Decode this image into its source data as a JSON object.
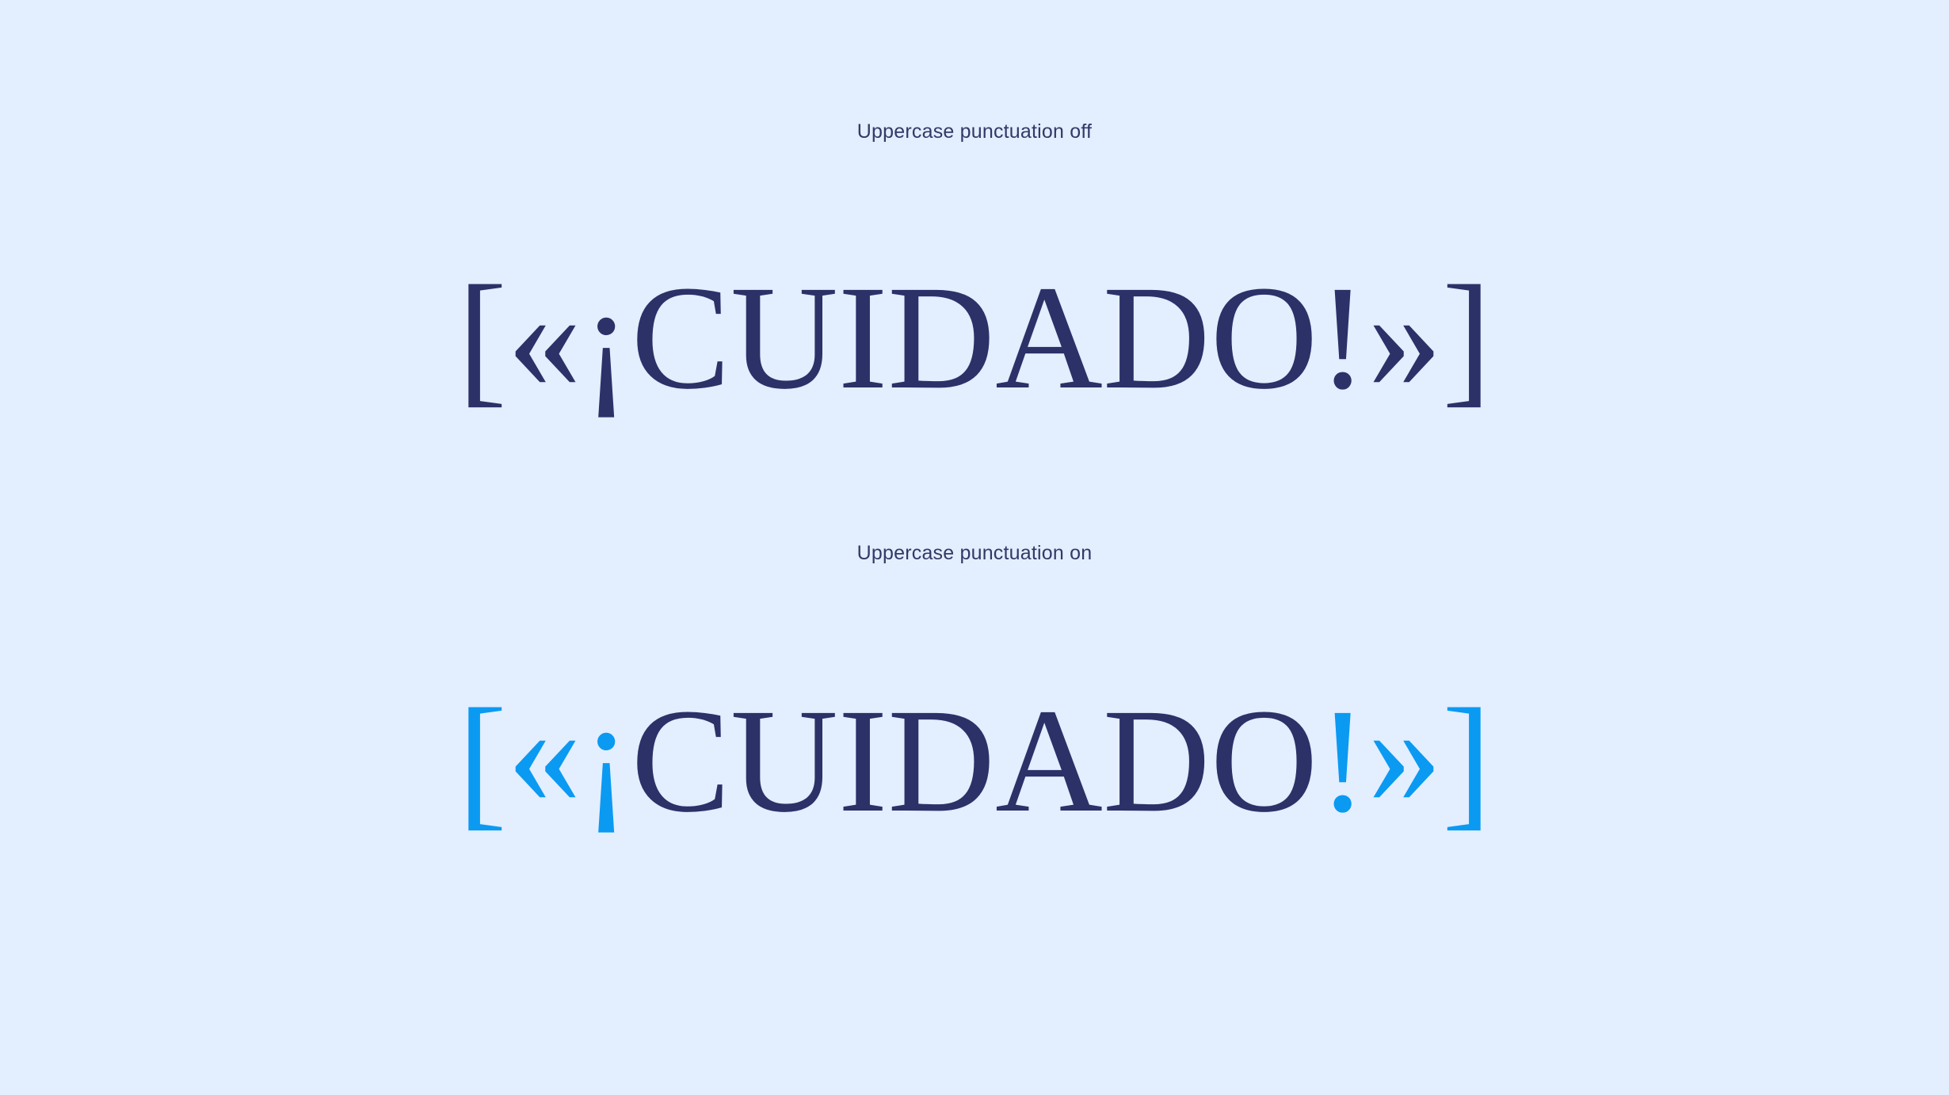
{
  "captions": {
    "off": "Uppercase punctuation off",
    "on": "Uppercase punctuation on"
  },
  "sample_off": {
    "open_bracket": "[",
    "open_guillemet": "«",
    "inverted_exclamation": "¡",
    "word": "CUIDADO",
    "exclamation": "!",
    "close_guillemet": "»",
    "close_bracket": "]"
  },
  "sample_on": {
    "open_bracket": "[",
    "open_guillemet": "«",
    "inverted_exclamation": "¡",
    "word": "CUIDADO",
    "exclamation": "!",
    "close_guillemet": "»",
    "close_bracket": "]"
  },
  "colors": {
    "background": "#e3eeff",
    "text": "#2c3168",
    "accent": "#0a9af2"
  }
}
